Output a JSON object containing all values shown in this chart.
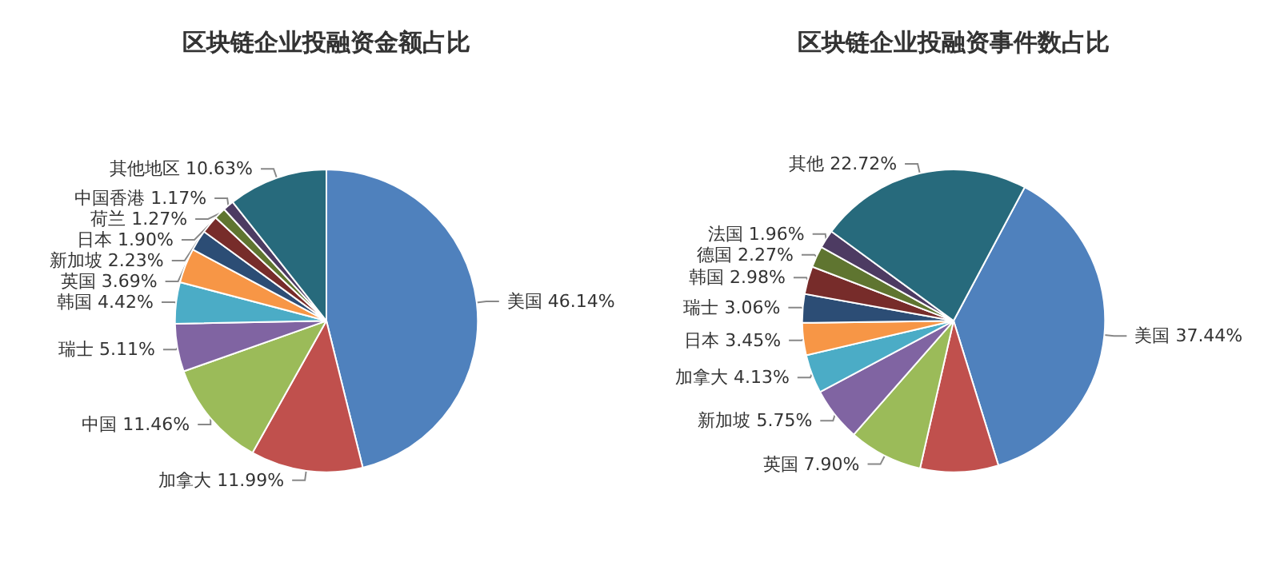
{
  "chart_data": [
    {
      "type": "pie",
      "title": "区块链企业投融资金额占比",
      "categories": [
        "美国",
        "加拿大",
        "中国",
        "瑞士",
        "韩国",
        "英国",
        "新加坡",
        "日本",
        "荷兰",
        "中国香港",
        "其他地区"
      ],
      "values": [
        46.14,
        11.99,
        11.46,
        5.11,
        4.42,
        3.69,
        2.23,
        1.9,
        1.27,
        1.17,
        10.63
      ],
      "value_labels": [
        "46.14%",
        "11.99%",
        "11.46%",
        "5.11%",
        "4.42%",
        "3.69%",
        "2.23%",
        "1.90%",
        "1.27%",
        "1.17%",
        "10.63%"
      ],
      "colors": [
        "#4f81bd",
        "#c0504d",
        "#9bbb59",
        "#8064a2",
        "#4bacc6",
        "#f79646",
        "#2c4d75",
        "#772c2a",
        "#5f7530",
        "#4d3b62",
        "#276a7c"
      ]
    },
    {
      "type": "pie",
      "title": "区块链企业投融资事件数占比",
      "categories": [
        "美国",
        null,
        "英国",
        "新加坡",
        "加拿大",
        "日本",
        "瑞士",
        "韩国",
        "德国",
        "法国",
        "其他"
      ],
      "values": [
        37.44,
        8.34,
        7.9,
        5.75,
        4.13,
        3.45,
        3.06,
        2.98,
        2.27,
        1.96,
        22.72
      ],
      "value_labels": [
        "37.44%",
        null,
        "7.90%",
        "5.75%",
        "4.13%",
        "3.45%",
        "3.06%",
        "2.98%",
        "2.27%",
        "1.96%",
        "22.72%"
      ],
      "colors": [
        "#4f81bd",
        "#c0504d",
        "#9bbb59",
        "#8064a2",
        "#4bacc6",
        "#f79646",
        "#2c4d75",
        "#772c2a",
        "#5f7530",
        "#4d3b62",
        "#276a7c"
      ]
    }
  ]
}
